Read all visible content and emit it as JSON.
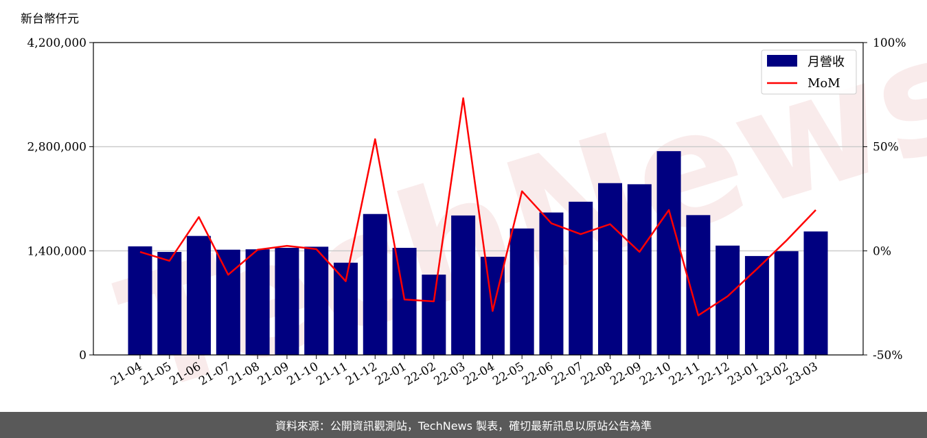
{
  "chart_data": {
    "type": "bar",
    "unit_label": "新台幣仟元",
    "categories": [
      "21-04",
      "21-05",
      "21-06",
      "21-07",
      "21-08",
      "21-09",
      "21-10",
      "21-11",
      "21-12",
      "22-01",
      "22-02",
      "22-03",
      "22-04",
      "22-05",
      "22-06",
      "22-07",
      "22-08",
      "22-09",
      "22-10",
      "22-11",
      "22-12",
      "23-01",
      "23-02",
      "23-03"
    ],
    "series": [
      {
        "name": "月營收",
        "type": "bar",
        "axis": "left",
        "color": "#000080",
        "values": [
          1460000,
          1385000,
          1600000,
          1415000,
          1420000,
          1440000,
          1455000,
          1240000,
          1895000,
          1440000,
          1080000,
          1875000,
          1320000,
          1700000,
          1915000,
          2060000,
          2310000,
          2295000,
          2740000,
          1880000,
          1470000,
          1330000,
          1395000,
          1660000
        ]
      },
      {
        "name": "MoM",
        "type": "line",
        "axis": "right",
        "color": "#ff0000",
        "values": [
          -0.5,
          -4.8,
          16.2,
          -11.5,
          0.5,
          2.4,
          0.8,
          -14.6,
          53.6,
          -23.4,
          -24.3,
          73.3,
          -28.9,
          28.6,
          13.2,
          8.0,
          12.8,
          -0.5,
          19.6,
          -31.0,
          -21.8,
          -8.7,
          4.9,
          19.6
        ]
      }
    ],
    "y_left": {
      "min": 0,
      "max": 4200000,
      "ticks": [
        "0",
        "1,400,000",
        "2,800,000",
        "4,200,000"
      ]
    },
    "y_right": {
      "min": -50,
      "max": 100,
      "ticks": [
        "-50%",
        "0%",
        "50%",
        "100%"
      ]
    },
    "grid": "horizontal",
    "legend": "top-right",
    "watermark": "TechNews"
  },
  "footer": {
    "source": "資料來源：公開資訊觀測站，TechNews 製表，確切最新訊息以原站公告為準"
  }
}
